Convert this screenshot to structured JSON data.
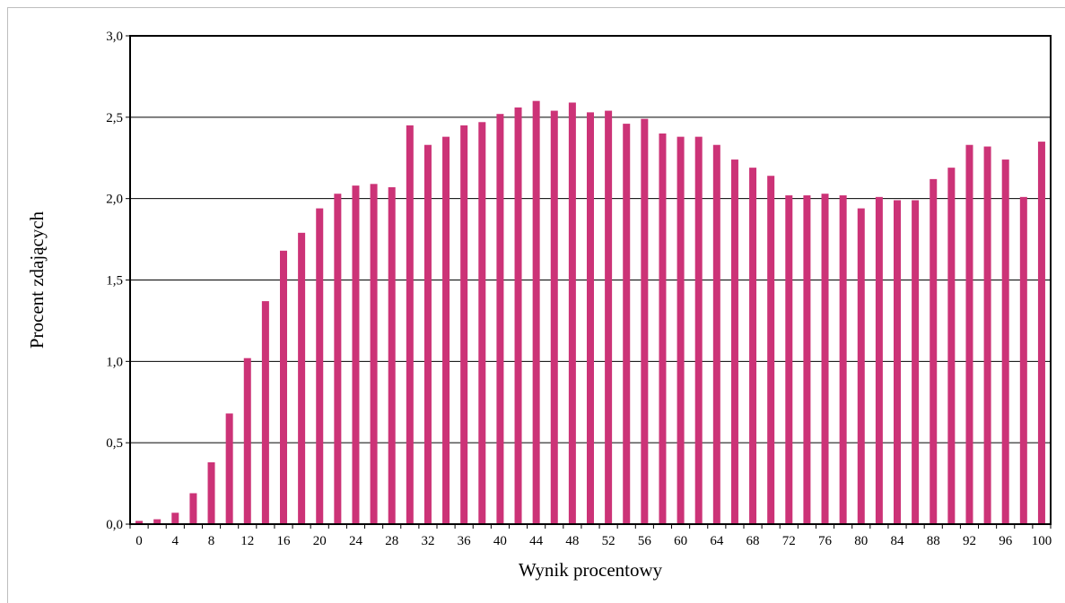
{
  "chart_data": {
    "type": "bar",
    "title": "",
    "xlabel": "Wynik procentowy",
    "ylabel": "Procent zdających",
    "ylim": [
      0,
      3.0
    ],
    "yticks": [
      "0,0",
      "0,5",
      "1,0",
      "1,5",
      "2,0",
      "2,5",
      "3,0"
    ],
    "xtick_labels": [
      "0",
      "4",
      "8",
      "12",
      "16",
      "20",
      "24",
      "28",
      "32",
      "36",
      "40",
      "44",
      "48",
      "52",
      "56",
      "60",
      "64",
      "68",
      "72",
      "76",
      "80",
      "84",
      "88",
      "92",
      "96",
      "100"
    ],
    "grid": true,
    "legend": "none",
    "bar_color": "#cc3377",
    "categories": [
      "0",
      "2",
      "4",
      "6",
      "8",
      "10",
      "12",
      "14",
      "16",
      "18",
      "20",
      "22",
      "24",
      "26",
      "28",
      "30",
      "32",
      "34",
      "36",
      "38",
      "40",
      "42",
      "44",
      "46",
      "48",
      "50",
      "52",
      "54",
      "56",
      "58",
      "60",
      "62",
      "64",
      "66",
      "68",
      "70",
      "72",
      "74",
      "76",
      "78",
      "80",
      "82",
      "84",
      "86",
      "88",
      "90",
      "92",
      "94",
      "96",
      "98",
      "100"
    ],
    "values": [
      0.02,
      0.03,
      0.07,
      0.19,
      0.38,
      0.68,
      1.02,
      1.37,
      1.68,
      1.79,
      1.94,
      2.03,
      2.08,
      2.09,
      2.07,
      2.45,
      2.33,
      2.38,
      2.45,
      2.47,
      2.52,
      2.56,
      2.6,
      2.54,
      2.59,
      2.53,
      2.54,
      2.46,
      2.49,
      2.4,
      2.38,
      2.38,
      2.33,
      2.24,
      2.19,
      2.14,
      2.02,
      2.02,
      2.03,
      2.02,
      1.94,
      2.01,
      1.99,
      1.99,
      2.12,
      2.19,
      2.33,
      2.32,
      2.24,
      2.01,
      2.35
    ]
  }
}
